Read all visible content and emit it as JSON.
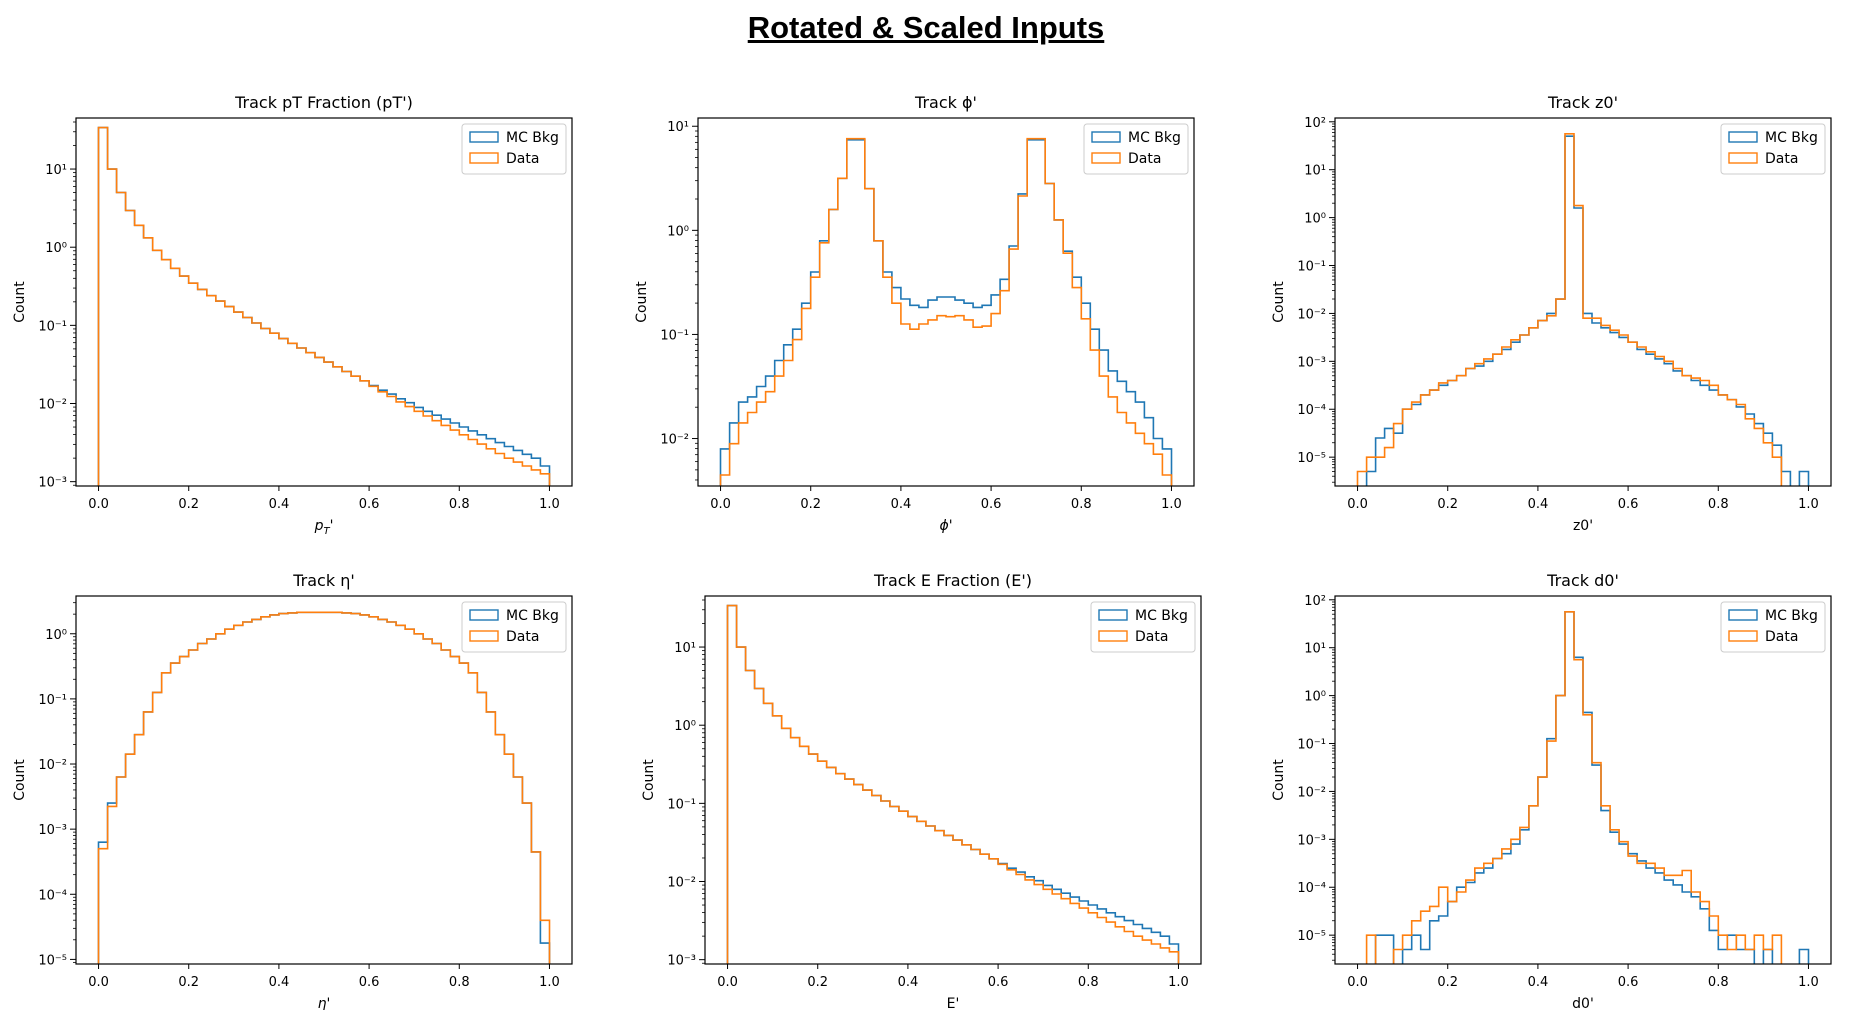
{
  "page_title": "Rotated & Scaled Inputs",
  "colors": {
    "mc": "#1f77b4",
    "data": "#ff7f0e"
  },
  "chart_data": [
    {
      "type": "histogram",
      "title": "Track pT Fraction (pT')",
      "xlabel": "pT'",
      "xlabel_style": "p_T subscript math",
      "ylabel": "Count",
      "yscale": "log",
      "xlim": [
        -0.05,
        1.05
      ],
      "ylim": [
        0.00088,
        45
      ],
      "xticks": [
        0.0,
        0.2,
        0.4,
        0.6,
        0.8,
        1.0
      ],
      "ytick_exponents": [
        -3,
        -2,
        -1,
        0,
        1
      ],
      "legend_position": "top-right",
      "bins": {
        "start": 0.0,
        "width": 0.02,
        "count": 50
      },
      "series": [
        {
          "name": "MC Bkg",
          "color": "#1f77b4",
          "log10_values": [
            1.53,
            1.0,
            0.7,
            0.47,
            0.28,
            0.12,
            -0.04,
            -0.16,
            -0.27,
            -0.37,
            -0.46,
            -0.54,
            -0.62,
            -0.69,
            -0.76,
            -0.83,
            -0.9,
            -0.97,
            -1.04,
            -1.1,
            -1.17,
            -1.23,
            -1.29,
            -1.35,
            -1.41,
            -1.47,
            -1.53,
            -1.59,
            -1.65,
            -1.71,
            -1.77,
            -1.83,
            -1.88,
            -1.94,
            -1.99,
            -2.05,
            -2.1,
            -2.15,
            -2.2,
            -2.25,
            -2.3,
            -2.35,
            -2.4,
            -2.45,
            -2.5,
            -2.55,
            -2.6,
            -2.65,
            -2.7,
            -2.8
          ]
        },
        {
          "name": "Data",
          "color": "#ff7f0e",
          "log10_values": [
            1.53,
            1.0,
            0.7,
            0.47,
            0.28,
            0.12,
            -0.04,
            -0.16,
            -0.27,
            -0.37,
            -0.46,
            -0.54,
            -0.62,
            -0.69,
            -0.76,
            -0.83,
            -0.9,
            -0.97,
            -1.04,
            -1.1,
            -1.17,
            -1.23,
            -1.29,
            -1.35,
            -1.41,
            -1.47,
            -1.53,
            -1.59,
            -1.65,
            -1.71,
            -1.78,
            -1.85,
            -1.91,
            -1.98,
            -2.04,
            -2.1,
            -2.16,
            -2.22,
            -2.28,
            -2.34,
            -2.4,
            -2.46,
            -2.52,
            -2.58,
            -2.64,
            -2.7,
            -2.75,
            -2.8,
            -2.85,
            -2.9
          ]
        }
      ]
    },
    {
      "type": "histogram",
      "title": "Track ϕ'",
      "xlabel": "ϕ'",
      "ylabel": "Count",
      "yscale": "log",
      "xlim": [
        -0.05,
        1.05
      ],
      "ylim": [
        0.0035,
        12
      ],
      "xticks": [
        0.0,
        0.2,
        0.4,
        0.6,
        0.8,
        1.0
      ],
      "ytick_exponents": [
        -2,
        -1,
        0,
        1
      ],
      "legend_position": "top-right",
      "bins": {
        "start": 0.0,
        "width": 0.02,
        "count": 50
      },
      "series": [
        {
          "name": "MC Bkg",
          "color": "#1f77b4",
          "log10_values": [
            -2.1,
            -1.85,
            -1.65,
            -1.6,
            -1.5,
            -1.4,
            -1.25,
            -1.1,
            -0.95,
            -0.7,
            -0.4,
            -0.1,
            0.2,
            0.5,
            0.87,
            0.87,
            0.4,
            -0.1,
            -0.4,
            -0.55,
            -0.66,
            -0.72,
            -0.74,
            -0.67,
            -0.64,
            -0.64,
            -0.67,
            -0.7,
            -0.74,
            -0.72,
            -0.62,
            -0.47,
            -0.15,
            0.35,
            0.87,
            0.87,
            0.45,
            0.1,
            -0.2,
            -0.45,
            -0.7,
            -0.95,
            -1.15,
            -1.35,
            -1.45,
            -1.55,
            -1.65,
            -1.8,
            -2.0,
            -2.1
          ]
        },
        {
          "name": "Data",
          "color": "#ff7f0e",
          "log10_values": [
            -2.35,
            -2.05,
            -1.85,
            -1.75,
            -1.65,
            -1.55,
            -1.4,
            -1.25,
            -1.05,
            -0.75,
            -0.45,
            -0.12,
            0.2,
            0.5,
            0.88,
            0.88,
            0.4,
            -0.1,
            -0.45,
            -0.7,
            -0.9,
            -0.95,
            -0.9,
            -0.86,
            -0.82,
            -0.83,
            -0.82,
            -0.86,
            -0.93,
            -0.92,
            -0.8,
            -0.58,
            -0.18,
            0.33,
            0.88,
            0.88,
            0.45,
            0.1,
            -0.22,
            -0.55,
            -0.85,
            -1.15,
            -1.4,
            -1.6,
            -1.75,
            -1.85,
            -1.95,
            -2.05,
            -2.15,
            -2.35
          ]
        }
      ]
    },
    {
      "type": "histogram",
      "title": "Track z0'",
      "xlabel": "z0'",
      "ylabel": "Count",
      "yscale": "log",
      "xlim": [
        -0.05,
        1.05
      ],
      "ylim": [
        2.5e-06,
        120
      ],
      "xticks": [
        0.0,
        0.2,
        0.4,
        0.6,
        0.8,
        1.0
      ],
      "ytick_exponents": [
        -5,
        -4,
        -3,
        -2,
        -1,
        0,
        1,
        2
      ],
      "legend_position": "top-right",
      "bins": {
        "start": 0.0,
        "width": 0.02,
        "count": 50
      },
      "series": [
        {
          "name": "MC Bkg",
          "color": "#1f77b4",
          "log10_values": [
            null,
            -5.3,
            -4.6,
            -4.4,
            -4.5,
            -4.0,
            -3.9,
            -3.7,
            -3.6,
            -3.5,
            -3.4,
            -3.3,
            -3.15,
            -3.1,
            -3.0,
            -2.85,
            -2.75,
            -2.6,
            -2.45,
            -2.3,
            -2.15,
            -2.0,
            -1.7,
            1.7,
            0.2,
            -2.0,
            -2.2,
            -2.3,
            -2.4,
            -2.5,
            -2.6,
            -2.75,
            -2.85,
            -2.95,
            -3.05,
            -3.2,
            -3.3,
            -3.4,
            -3.5,
            -3.6,
            -3.7,
            -3.8,
            -3.95,
            -4.1,
            -4.3,
            -4.5,
            -4.75,
            -5.3,
            null,
            -5.3
          ]
        },
        {
          "name": "Data",
          "color": "#ff7f0e",
          "log10_values": [
            -5.3,
            -5.0,
            -5.0,
            -4.8,
            -4.3,
            -4.0,
            -3.85,
            -3.7,
            -3.6,
            -3.45,
            -3.4,
            -3.3,
            -3.15,
            -3.05,
            -2.95,
            -2.85,
            -2.7,
            -2.55,
            -2.45,
            -2.3,
            -2.15,
            -2.05,
            -1.7,
            1.75,
            0.25,
            -2.1,
            -2.1,
            -2.25,
            -2.35,
            -2.45,
            -2.6,
            -2.7,
            -2.8,
            -2.9,
            -3.0,
            -3.15,
            -3.3,
            -3.35,
            -3.4,
            -3.5,
            -3.7,
            -3.8,
            -3.9,
            -4.2,
            -4.4,
            -4.7,
            -5.0,
            null,
            null,
            null
          ]
        }
      ]
    },
    {
      "type": "histogram",
      "title": "Track η'",
      "xlabel": "η'",
      "ylabel": "Count",
      "yscale": "log",
      "xlim": [
        -0.05,
        1.05
      ],
      "ylim": [
        8.5e-06,
        3.8
      ],
      "xticks": [
        0.0,
        0.2,
        0.4,
        0.6,
        0.8,
        1.0
      ],
      "ytick_exponents": [
        -5,
        -4,
        -3,
        -2,
        -1,
        0
      ],
      "legend_position": "top-right",
      "bins": {
        "start": 0.0,
        "width": 0.02,
        "count": 50
      },
      "series": [
        {
          "name": "MC Bkg",
          "color": "#1f77b4",
          "log10_values": [
            -3.2,
            -2.6,
            -2.2,
            -1.85,
            -1.55,
            -1.2,
            -0.9,
            -0.6,
            -0.45,
            -0.35,
            -0.25,
            -0.15,
            -0.08,
            0.0,
            0.07,
            0.13,
            0.18,
            0.22,
            0.26,
            0.29,
            0.31,
            0.32,
            0.33,
            0.33,
            0.33,
            0.33,
            0.33,
            0.32,
            0.31,
            0.29,
            0.26,
            0.22,
            0.18,
            0.13,
            0.07,
            0.0,
            -0.08,
            -0.15,
            -0.25,
            -0.35,
            -0.45,
            -0.6,
            -0.9,
            -1.2,
            -1.55,
            -1.85,
            -2.2,
            -2.6,
            -3.35,
            -4.75
          ]
        },
        {
          "name": "Data",
          "color": "#ff7f0e",
          "log10_values": [
            -3.3,
            -2.65,
            -2.2,
            -1.85,
            -1.55,
            -1.2,
            -0.9,
            -0.6,
            -0.45,
            -0.35,
            -0.25,
            -0.15,
            -0.08,
            0.0,
            0.07,
            0.13,
            0.18,
            0.22,
            0.26,
            0.29,
            0.31,
            0.32,
            0.33,
            0.33,
            0.33,
            0.33,
            0.33,
            0.32,
            0.31,
            0.29,
            0.26,
            0.22,
            0.18,
            0.13,
            0.07,
            0.0,
            -0.08,
            -0.15,
            -0.25,
            -0.35,
            -0.45,
            -0.6,
            -0.9,
            -1.2,
            -1.55,
            -1.85,
            -2.2,
            -2.6,
            -3.35,
            -4.4
          ]
        }
      ]
    },
    {
      "type": "histogram",
      "title": "Track E Fraction (E')",
      "xlabel": "E'",
      "ylabel": "Count",
      "yscale": "log",
      "xlim": [
        -0.05,
        1.05
      ],
      "ylim": [
        0.00088,
        45
      ],
      "xticks": [
        0.0,
        0.2,
        0.4,
        0.6,
        0.8,
        1.0
      ],
      "ytick_exponents": [
        -3,
        -2,
        -1,
        0,
        1
      ],
      "legend_position": "top-right",
      "bins": {
        "start": 0.0,
        "width": 0.02,
        "count": 50
      },
      "series": [
        {
          "name": "MC Bkg",
          "color": "#1f77b4",
          "log10_values": [
            1.53,
            1.0,
            0.7,
            0.47,
            0.28,
            0.12,
            -0.04,
            -0.16,
            -0.27,
            -0.37,
            -0.46,
            -0.54,
            -0.62,
            -0.69,
            -0.76,
            -0.83,
            -0.9,
            -0.97,
            -1.04,
            -1.1,
            -1.17,
            -1.23,
            -1.29,
            -1.35,
            -1.41,
            -1.47,
            -1.53,
            -1.59,
            -1.65,
            -1.71,
            -1.77,
            -1.83,
            -1.88,
            -1.94,
            -1.99,
            -2.05,
            -2.1,
            -2.15,
            -2.2,
            -2.25,
            -2.3,
            -2.35,
            -2.4,
            -2.45,
            -2.5,
            -2.55,
            -2.6,
            -2.65,
            -2.7,
            -2.8
          ]
        },
        {
          "name": "Data",
          "color": "#ff7f0e",
          "log10_values": [
            1.53,
            1.0,
            0.7,
            0.47,
            0.28,
            0.12,
            -0.04,
            -0.16,
            -0.27,
            -0.37,
            -0.46,
            -0.54,
            -0.62,
            -0.69,
            -0.76,
            -0.83,
            -0.9,
            -0.97,
            -1.04,
            -1.1,
            -1.17,
            -1.23,
            -1.29,
            -1.35,
            -1.41,
            -1.47,
            -1.53,
            -1.59,
            -1.65,
            -1.71,
            -1.78,
            -1.85,
            -1.91,
            -1.98,
            -2.04,
            -2.1,
            -2.16,
            -2.22,
            -2.28,
            -2.34,
            -2.4,
            -2.46,
            -2.52,
            -2.58,
            -2.64,
            -2.7,
            -2.75,
            -2.8,
            -2.85,
            -2.9
          ]
        }
      ]
    },
    {
      "type": "histogram",
      "title": "Track d0'",
      "xlabel": "d0'",
      "ylabel": "Count",
      "yscale": "log",
      "xlim": [
        -0.05,
        1.05
      ],
      "ylim": [
        2.5e-06,
        120
      ],
      "xticks": [
        0.0,
        0.2,
        0.4,
        0.6,
        0.8,
        1.0
      ],
      "ytick_exponents": [
        -5,
        -4,
        -3,
        -2,
        -1,
        0,
        1,
        2
      ],
      "legend_position": "top-right",
      "bins": {
        "start": 0.0,
        "width": 0.02,
        "count": 50
      },
      "series": [
        {
          "name": "MC Bkg",
          "color": "#1f77b4",
          "log10_values": [
            null,
            null,
            -5.0,
            -5.0,
            null,
            -5.3,
            -5.0,
            -5.3,
            -4.7,
            -4.6,
            -4.3,
            -4.0,
            -3.9,
            -3.7,
            -3.6,
            -3.4,
            -3.3,
            -3.1,
            -2.8,
            -2.3,
            -1.7,
            -0.9,
            0.0,
            1.75,
            0.8,
            -0.35,
            -1.45,
            -2.4,
            -2.85,
            -3.1,
            -3.3,
            -3.45,
            -3.6,
            -3.7,
            -3.85,
            -3.95,
            -4.1,
            -4.2,
            -4.45,
            -4.9,
            -5.3,
            -5.0,
            -5.3,
            -5.3,
            null,
            -5.3,
            null,
            null,
            null,
            -5.3
          ]
        },
        {
          "name": "Data",
          "color": "#ff7f0e",
          "log10_values": [
            null,
            -5.0,
            null,
            null,
            -5.3,
            -5.0,
            -4.7,
            -4.5,
            -4.4,
            -4.0,
            -4.3,
            -4.1,
            -3.85,
            -3.6,
            -3.5,
            -3.4,
            -3.2,
            -3.0,
            -2.75,
            -2.3,
            -1.7,
            -0.95,
            0.0,
            1.75,
            0.75,
            -0.4,
            -1.4,
            -2.3,
            -2.8,
            -3.05,
            -3.35,
            -3.5,
            -3.5,
            -3.6,
            -3.75,
            -3.75,
            -3.65,
            -4.1,
            -4.3,
            -4.6,
            -5.0,
            -5.3,
            -5.0,
            -5.3,
            -5.0,
            -5.3,
            -5.0,
            null,
            null,
            null
          ]
        }
      ]
    }
  ]
}
